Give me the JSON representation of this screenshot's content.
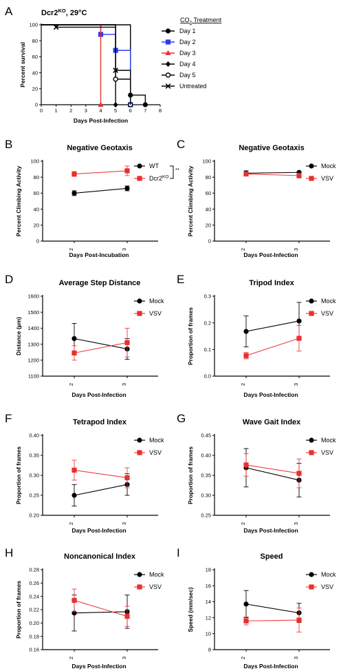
{
  "colors": {
    "black": "#000000",
    "blue": "#2a3bf2",
    "red": "#e8302d",
    "redline": "#ee3c3c"
  },
  "chart_data": [
    {
      "type": "line",
      "panel": "A",
      "title": "Dcr2KO, 29°C",
      "title_base": "Dcr2",
      "title_sup": "KO",
      "title_rest": ", 29°C",
      "xlabel": "Days Post-Infection",
      "ylabel": "Percent survival",
      "xlim": [
        0,
        8
      ],
      "ylim": [
        0,
        100
      ],
      "xticks": [
        "0",
        "1",
        "2",
        "3",
        "4",
        "5",
        "6",
        "7",
        "8"
      ],
      "yticks": [
        "0",
        "20",
        "40",
        "60",
        "80",
        "100"
      ],
      "legend_title": "CO2 Treatment",
      "legend_title_pre": "CO",
      "legend_title_sub": "2",
      "legend_title_post": " Treatment",
      "series": [
        {
          "name": "Day 1",
          "marker": "circle",
          "color": "#000000",
          "steps": [
            [
              0,
              100
            ],
            [
              6,
              100
            ],
            [
              6,
              12
            ],
            [
              7,
              12
            ],
            [
              7,
              0
            ]
          ],
          "markers": [
            [
              6,
              12
            ],
            [
              7,
              0
            ]
          ]
        },
        {
          "name": "Day 2",
          "marker": "square",
          "color": "#2a3bf2",
          "steps": [
            [
              0,
              100
            ],
            [
              4,
              100
            ],
            [
              4,
              88
            ],
            [
              5,
              88
            ],
            [
              5,
              68
            ],
            [
              6,
              68
            ],
            [
              6,
              0
            ]
          ],
          "markers": [
            [
              4,
              88
            ],
            [
              5,
              68
            ],
            [
              6,
              0
            ]
          ]
        },
        {
          "name": "Day 3",
          "marker": "triangle",
          "color": "#e8302d",
          "steps": [
            [
              0,
              100
            ],
            [
              4,
              100
            ],
            [
              4,
              0
            ]
          ],
          "markers": [
            [
              4,
              0
            ]
          ]
        },
        {
          "name": "Day 4",
          "marker": "diamond",
          "color": "#000000",
          "steps": [
            [
              0,
              100
            ],
            [
              5,
              100
            ],
            [
              5,
              0
            ]
          ],
          "markers": [
            [
              5,
              0
            ]
          ]
        },
        {
          "name": "Day 5",
          "marker": "open-circle",
          "color": "#000000",
          "steps": [
            [
              0,
              100
            ],
            [
              5,
              100
            ],
            [
              5,
              32
            ],
            [
              6,
              32
            ],
            [
              6,
              0
            ]
          ],
          "markers": [
            [
              5,
              32
            ],
            [
              6,
              0
            ]
          ]
        },
        {
          "name": "Untreated",
          "marker": "x",
          "color": "#000000",
          "steps": [
            [
              0,
              100
            ],
            [
              1,
              100
            ],
            [
              1,
              97
            ],
            [
              5,
              97
            ],
            [
              5,
              43
            ],
            [
              6,
              43
            ],
            [
              6,
              0
            ]
          ],
          "markers": [
            [
              1,
              97
            ],
            [
              5,
              43
            ]
          ]
        }
      ]
    },
    {
      "type": "line",
      "panel": "B",
      "title": "Negative Geotaxis",
      "xlabel": "Days Post-Incubation",
      "ylabel": "Percent Climbing Activity",
      "categories": [
        "2",
        "3"
      ],
      "ylim": [
        0,
        100
      ],
      "yticks": [
        "0",
        "20",
        "40",
        "60",
        "80",
        "100"
      ],
      "annotation": "**",
      "series": [
        {
          "name": "WT",
          "color": "#000000",
          "values": [
            60,
            66
          ],
          "err": [
            3,
            3
          ]
        },
        {
          "name": "Dcr2KO",
          "name_base": "Dcr2",
          "name_sup": "KO",
          "color": "#e8302d",
          "values": [
            84,
            88
          ],
          "err": [
            3,
            6
          ]
        }
      ]
    },
    {
      "type": "line",
      "panel": "C",
      "title": "Negative Geotaxis",
      "xlabel": "Days Post-Infection",
      "ylabel": "Percent Climbing Activity",
      "categories": [
        "2",
        "3"
      ],
      "ylim": [
        0,
        100
      ],
      "yticks": [
        "0",
        "20",
        "40",
        "60",
        "80",
        "100"
      ],
      "series": [
        {
          "name": "Mock",
          "color": "#000000",
          "values": [
            85,
            86
          ],
          "err": [
            3,
            1
          ]
        },
        {
          "name": "VSV",
          "color": "#e8302d",
          "values": [
            84,
            82
          ],
          "err": [
            2,
            3
          ]
        }
      ]
    },
    {
      "type": "line",
      "panel": "D",
      "title": "Average Step Distance",
      "xlabel": "Days Post-Infection",
      "ylabel": "Distance (µm)",
      "categories": [
        "2",
        "3"
      ],
      "ylim": [
        1100,
        1600
      ],
      "yticks": [
        "1100",
        "1200",
        "1300",
        "1400",
        "1500",
        "1600"
      ],
      "series": [
        {
          "name": "Mock",
          "color": "#000000",
          "values": [
            1335,
            1270
          ],
          "err": [
            95,
            65
          ]
        },
        {
          "name": "VSV",
          "color": "#e8302d",
          "values": [
            1245,
            1310
          ],
          "err": [
            45,
            90
          ]
        }
      ]
    },
    {
      "type": "line",
      "panel": "E",
      "title": "Tripod Index",
      "xlabel": "Days Post-Infection",
      "ylabel": "Proportion of frames",
      "categories": [
        "2",
        "3"
      ],
      "ylim": [
        0.0,
        0.3
      ],
      "yticks": [
        "0.0",
        "0.1",
        "0.2",
        "0.3"
      ],
      "series": [
        {
          "name": "Mock",
          "color": "#000000",
          "values": [
            0.168,
            0.207
          ],
          "err": [
            0.058,
            0.07
          ]
        },
        {
          "name": "VSV",
          "color": "#e8302d",
          "values": [
            0.077,
            0.142
          ],
          "err": [
            0.012,
            0.048
          ]
        }
      ]
    },
    {
      "type": "line",
      "panel": "F",
      "title": "Tetrapod Index",
      "xlabel": "Days Post-Infection",
      "ylabel": "Proportion of frames",
      "categories": [
        "2",
        "3"
      ],
      "ylim": [
        0.2,
        0.4
      ],
      "yticks": [
        "0.20",
        "0.25",
        "0.30",
        "0.35",
        "0.40"
      ],
      "series": [
        {
          "name": "Mock",
          "color": "#000000",
          "values": [
            0.25,
            0.277
          ],
          "err": [
            0.027,
            0.027
          ]
        },
        {
          "name": "VSV",
          "color": "#e8302d",
          "values": [
            0.313,
            0.294
          ],
          "err": [
            0.025,
            0.025
          ]
        }
      ]
    },
    {
      "type": "line",
      "panel": "G",
      "title": "Wave Gait Index",
      "xlabel": "Days Post-Infection",
      "ylabel": "Proportion of frames",
      "categories": [
        "2",
        "3"
      ],
      "ylim": [
        0.25,
        0.45
      ],
      "yticks": [
        "0.25",
        "0.30",
        "0.35",
        "0.40",
        "0.45"
      ],
      "series": [
        {
          "name": "Mock",
          "color": "#000000",
          "values": [
            0.369,
            0.338
          ],
          "err": [
            0.048,
            0.042
          ]
        },
        {
          "name": "VSV",
          "color": "#e8302d",
          "values": [
            0.376,
            0.355
          ],
          "err": [
            0.028,
            0.036
          ]
        }
      ]
    },
    {
      "type": "line",
      "panel": "H",
      "title": "Noncanonical Index",
      "xlabel": "Days Post-Infection",
      "ylabel": "Proportion of frames",
      "categories": [
        "2",
        "3"
      ],
      "ylim": [
        0.16,
        0.28
      ],
      "yticks": [
        "0.16",
        "0.18",
        "0.20",
        "0.22",
        "0.24",
        "0.26",
        "0.28"
      ],
      "series": [
        {
          "name": "Mock",
          "color": "#000000",
          "values": [
            0.215,
            0.217
          ],
          "err": [
            0.027,
            0.025
          ]
        },
        {
          "name": "VSV",
          "color": "#e8302d",
          "values": [
            0.234,
            0.21
          ],
          "err": [
            0.017,
            0.015
          ]
        }
      ]
    },
    {
      "type": "line",
      "panel": "I",
      "title": "Speed",
      "xlabel": "Days Post-Infection",
      "ylabel": "Speed (mm/sec)",
      "categories": [
        "2",
        "3"
      ],
      "ylim": [
        8,
        18
      ],
      "yticks": [
        "8",
        "10",
        "12",
        "14",
        "16",
        "18"
      ],
      "series": [
        {
          "name": "Mock",
          "color": "#000000",
          "values": [
            13.7,
            12.6
          ],
          "err": [
            1.7,
            1.2
          ]
        },
        {
          "name": "VSV",
          "color": "#e8302d",
          "values": [
            11.6,
            11.7
          ],
          "err": [
            0.5,
            1.5
          ]
        }
      ]
    }
  ]
}
